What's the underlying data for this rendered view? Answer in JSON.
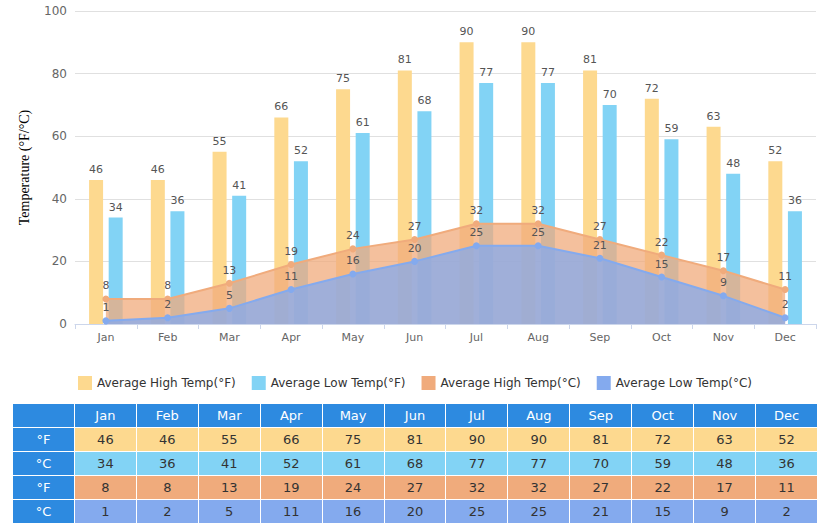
{
  "chart_data": {
    "type": "bar",
    "y_label": "Temperature (°F/°C)",
    "categories": [
      "Jan",
      "Feb",
      "Mar",
      "Apr",
      "May",
      "Jun",
      "Jul",
      "Aug",
      "Sep",
      "Oct",
      "Nov",
      "Dec"
    ],
    "series": [
      {
        "name": "Average High Temp(°F)",
        "type": "bar",
        "color": "#fdd98f",
        "values": [
          46,
          46,
          55,
          66,
          75,
          81,
          90,
          90,
          81,
          72,
          63,
          52
        ]
      },
      {
        "name": "Average Low Temp(°F)",
        "type": "bar",
        "color": "#82d3f5",
        "values": [
          34,
          36,
          41,
          52,
          61,
          68,
          77,
          77,
          70,
          59,
          48,
          36
        ]
      },
      {
        "name": "Average High Temp(°C)",
        "type": "line",
        "marker": "circle",
        "color": "#f0ab7c",
        "values": [
          8,
          8,
          13,
          19,
          24,
          27,
          32,
          32,
          27,
          22,
          17,
          11
        ]
      },
      {
        "name": "Average Low Temp(°C)",
        "type": "line",
        "marker": "circle",
        "color": "#84aaee",
        "values": [
          1,
          2,
          5,
          11,
          16,
          20,
          25,
          25,
          21,
          15,
          9,
          2
        ]
      }
    ],
    "ylim": [
      0,
      100
    ],
    "yticks": [
      0,
      20,
      40,
      60,
      80,
      100
    ],
    "grid": true,
    "data_labels": true,
    "legend": "bottom"
  },
  "table": {
    "row_labels": [
      "°F",
      "°C",
      "°F",
      "°C"
    ]
  }
}
